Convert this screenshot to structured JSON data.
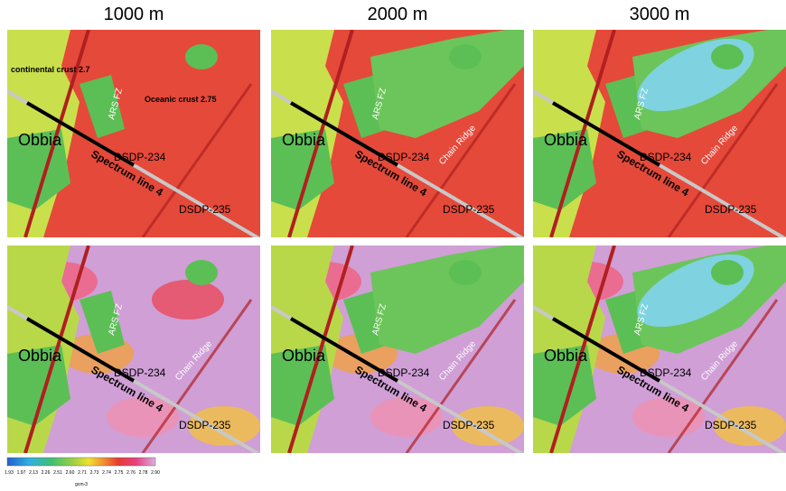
{
  "columns": {
    "titles": [
      "1000 m",
      "2000 m",
      "3000 m"
    ]
  },
  "panels": [
    {
      "labels": {
        "obbia": "Obbia",
        "line": "Spectrum line 4",
        "dsdp234": "DSDP-234",
        "dsdp235": "DSDP-235",
        "fz": "ARS FZ",
        "continental": "continental crust 2.7",
        "oceanic": "Oceanic crust 2.75"
      }
    },
    {
      "labels": {
        "obbia": "Obbia",
        "line": "Spectrum line 4",
        "dsdp234": "DSDP-234",
        "dsdp235": "DSDP-235",
        "fz": "ARS FZ",
        "ridge": "Chain Ridge"
      }
    },
    {
      "labels": {
        "obbia": "Obbia",
        "line": "Spectrum line 4",
        "dsdp234": "DSDP-234",
        "dsdp235": "DSDP-235",
        "fz": "ARS FZ",
        "ridge": "Chain Ridge"
      }
    },
    {
      "labels": {
        "obbia": "Obbia",
        "line": "Spectrum line 4",
        "dsdp234": "DSDP-234",
        "dsdp235": "DSDP-235",
        "fz": "ARS FZ",
        "ridge": "Chain Ridge"
      }
    },
    {
      "labels": {
        "obbia": "Obbia",
        "line": "Spectrum line 4",
        "dsdp234": "DSDP-234",
        "dsdp235": "DSDP-235",
        "fz": "ARS FZ",
        "ridge": "Chain Ridge"
      }
    },
    {
      "labels": {
        "obbia": "Obbia",
        "line": "Spectrum line 4",
        "dsdp234": "DSDP-234",
        "dsdp235": "DSDP-235",
        "fz": "ARS FZ",
        "ridge": "Chain Ridge"
      }
    }
  ],
  "colorbar": {
    "ticks": [
      "1.93",
      "1.97",
      "2.13",
      "2.26",
      "2.51",
      "2.60",
      "2.71",
      "2.73",
      "2.74",
      "2.75",
      "2.76",
      "2.78",
      "2.90"
    ],
    "unit": "gcm-3"
  }
}
